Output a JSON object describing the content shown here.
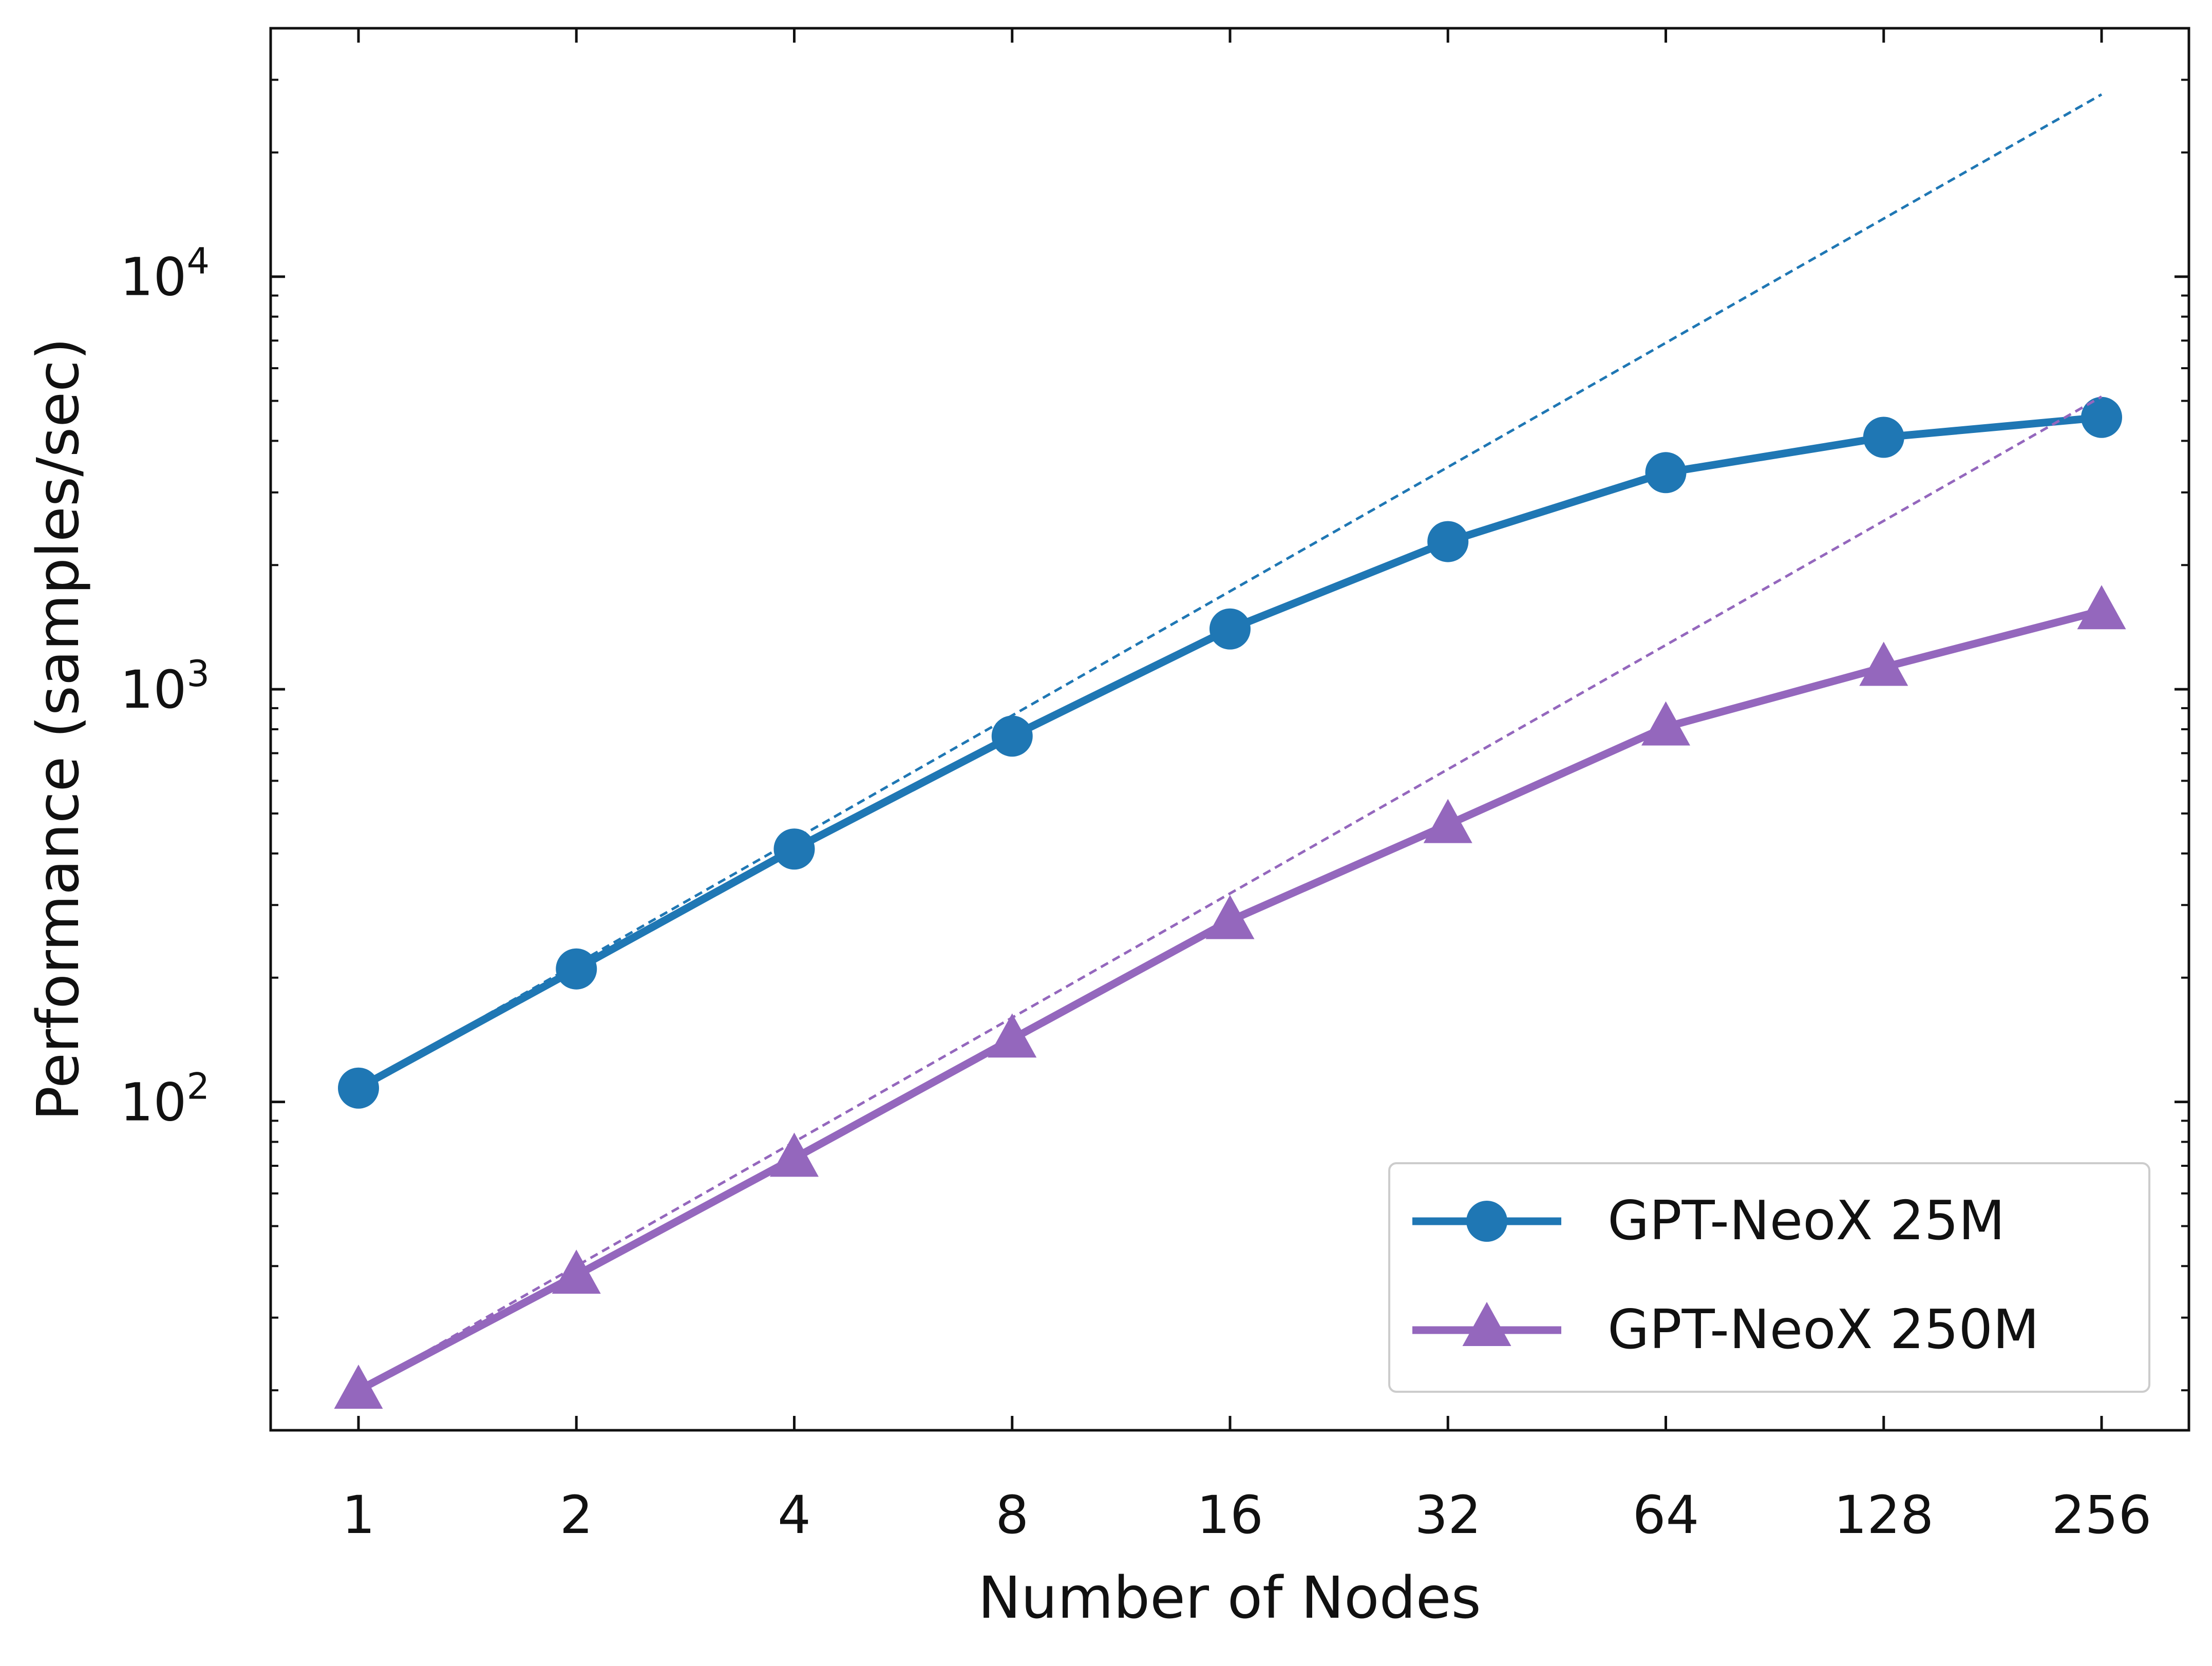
{
  "chart_data": {
    "type": "line",
    "xlabel": "Number of Nodes",
    "ylabel": "Performance (samples/sec)",
    "x_scale": "log2",
    "y_scale": "log10",
    "x": [
      1,
      2,
      4,
      8,
      16,
      32,
      64,
      128,
      256
    ],
    "x_tick_labels": [
      "1",
      "2",
      "4",
      "8",
      "16",
      "32",
      "64",
      "128",
      "256"
    ],
    "ylim": [
      16,
      40000
    ],
    "y_ticks": [
      {
        "value": 100,
        "base": "10",
        "exp": "2"
      },
      {
        "value": 1000,
        "base": "10",
        "exp": "3"
      },
      {
        "value": 10000,
        "base": "10",
        "exp": "4"
      }
    ],
    "legend_position": "bottom-right",
    "series": [
      {
        "name": "GPT-NeoX 25M",
        "color": "#1f77b4",
        "marker": "circle",
        "values": [
          108,
          210,
          410,
          770,
          1400,
          2280,
          3350,
          4080,
          4560
        ],
        "ideal_scaling": [
          108,
          216,
          432,
          864,
          1728,
          3456,
          6912,
          13824,
          27648
        ]
      },
      {
        "name": "GPT-NeoX 250M",
        "color": "#9467bd",
        "marker": "triangle",
        "values": [
          20,
          38,
          73,
          142,
          275,
          470,
          810,
          1130,
          1550
        ],
        "ideal_scaling": [
          20,
          40,
          80,
          160,
          320,
          640,
          1280,
          2560,
          5120
        ]
      }
    ]
  }
}
